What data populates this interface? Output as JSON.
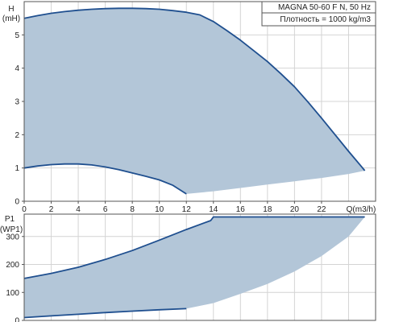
{
  "legend": {
    "model": "MAGNA 50-60 F N, 50 Hz",
    "density": "Плотность = 1000 kg/m3"
  },
  "chart_data": [
    {
      "type": "area",
      "ylabel_line1": "H",
      "ylabel_line2": "(mH)",
      "xlabel": "Q(m3/h)",
      "x_range": [
        0,
        26
      ],
      "y_range": [
        0,
        6
      ],
      "x_ticks": [
        "0",
        "2",
        "4",
        "6",
        "8",
        "10",
        "12",
        "14",
        "16",
        "18",
        "20",
        "22"
      ],
      "x_tick_values": [
        0,
        2,
        4,
        6,
        8,
        10,
        12,
        14,
        16,
        18,
        20,
        22
      ],
      "y_ticks": [
        "0",
        "1",
        "2",
        "3",
        "4",
        "5"
      ],
      "y_tick_values": [
        0,
        1,
        2,
        3,
        4,
        5
      ],
      "grid": true,
      "series": [
        {
          "role": "max-curve",
          "x": [
            0,
            1,
            2,
            3,
            4,
            5,
            6,
            7,
            8,
            9,
            10,
            11,
            12,
            13,
            14,
            15,
            16,
            17,
            18,
            19,
            20,
            21,
            22,
            23,
            24,
            25,
            25.2
          ],
          "y": [
            5.5,
            5.58,
            5.65,
            5.7,
            5.74,
            5.77,
            5.79,
            5.8,
            5.8,
            5.79,
            5.77,
            5.73,
            5.68,
            5.6,
            5.4,
            5.13,
            4.84,
            4.52,
            4.2,
            3.83,
            3.44,
            2.98,
            2.5,
            2.0,
            1.5,
            1.02,
            0.92
          ]
        },
        {
          "role": "min-curve",
          "x": [
            0,
            1,
            2,
            3,
            4,
            5,
            6,
            7,
            8,
            9,
            10,
            11,
            12
          ],
          "y": [
            1.0,
            1.06,
            1.1,
            1.12,
            1.12,
            1.09,
            1.03,
            0.95,
            0.85,
            0.75,
            0.64,
            0.48,
            0.22
          ]
        },
        {
          "role": "lower-boundary",
          "x": [
            12,
            14,
            16,
            18,
            20,
            22,
            24,
            25.2
          ],
          "y": [
            0.22,
            0.3,
            0.4,
            0.5,
            0.6,
            0.7,
            0.82,
            0.92
          ]
        }
      ]
    },
    {
      "type": "area",
      "ylabel_line1": "P1",
      "ylabel_line2": "(WP1)",
      "xlabel": "",
      "x_range": [
        0,
        26
      ],
      "y_range": [
        0,
        380
      ],
      "y_ticks": [
        "0",
        "100",
        "200",
        "300"
      ],
      "y_tick_values": [
        0,
        100,
        200,
        300
      ],
      "grid": true,
      "series": [
        {
          "role": "max-curve",
          "x": [
            0,
            2,
            4,
            6,
            8,
            10,
            12,
            13.8,
            14,
            16,
            18,
            20,
            22,
            24,
            25.2
          ],
          "y": [
            150,
            168,
            190,
            218,
            250,
            287,
            325,
            357,
            370,
            370,
            370,
            370,
            370,
            370,
            370
          ]
        },
        {
          "role": "min-curve",
          "x": [
            0,
            2,
            4,
            6,
            8,
            10,
            12
          ],
          "y": [
            10,
            16,
            22,
            28,
            33,
            38,
            42
          ]
        },
        {
          "role": "lower-boundary",
          "x": [
            12,
            14,
            16,
            18,
            20,
            22,
            24,
            25.2
          ],
          "y": [
            42,
            62,
            95,
            130,
            175,
            230,
            300,
            370
          ]
        }
      ]
    }
  ]
}
